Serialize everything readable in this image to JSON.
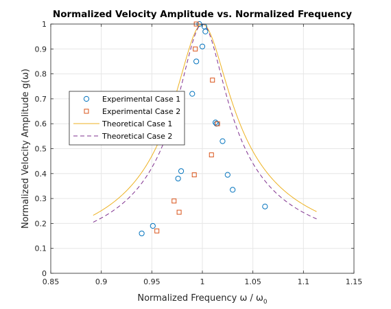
{
  "chart_data": {
    "type": "scatter",
    "title": "Normalized Velocity Amplitude vs. Normalized Frequency",
    "xlabel": {
      "main": "Normalized Frequency ω / ω",
      "sub": "0"
    },
    "ylabel": "Normalized Velocity Amplitude g(ω)",
    "xlim": [
      0.85,
      1.15
    ],
    "ylim": [
      0,
      1
    ],
    "xticks": [
      0.85,
      0.9,
      0.95,
      1,
      1.05,
      1.1,
      1.15
    ],
    "xtick_labels": [
      "0.85",
      "0.9",
      "0.95",
      "1",
      "1.05",
      "1.1",
      "1.15"
    ],
    "yticks": [
      0,
      0.1,
      0.2,
      0.3,
      0.4,
      0.5,
      0.6,
      0.7,
      0.8,
      0.9,
      1
    ],
    "ytick_labels": [
      "0",
      "0.1",
      "0.2",
      "0.3",
      "0.4",
      "0.5",
      "0.6",
      "0.7",
      "0.8",
      "0.9",
      "1"
    ],
    "grid": true,
    "legend_position": "left",
    "series": [
      {
        "name": "Experimental Case 1",
        "kind": "marker-circle",
        "color": "#0072BD",
        "points": [
          [
            0.94,
            0.16
          ],
          [
            0.951,
            0.19
          ],
          [
            0.976,
            0.38
          ],
          [
            0.979,
            0.41
          ],
          [
            0.99,
            0.72
          ],
          [
            0.994,
            0.85
          ],
          [
            0.997,
            1.0
          ],
          [
            1.0,
            0.91
          ],
          [
            1.002,
            0.99
          ],
          [
            1.003,
            0.97
          ],
          [
            1.013,
            0.605
          ],
          [
            1.014,
            0.6
          ],
          [
            1.02,
            0.53
          ],
          [
            1.025,
            0.395
          ],
          [
            1.03,
            0.335
          ],
          [
            1.062,
            0.268
          ]
        ]
      },
      {
        "name": "Experimental Case 2",
        "kind": "marker-square",
        "color": "#D95319",
        "points": [
          [
            0.955,
            0.17
          ],
          [
            0.972,
            0.29
          ],
          [
            0.977,
            0.245
          ],
          [
            0.992,
            0.395
          ],
          [
            0.993,
            0.9
          ],
          [
            0.994,
            1.0
          ],
          [
            1.009,
            0.475
          ],
          [
            1.01,
            0.775
          ],
          [
            1.015,
            0.6
          ]
        ]
      },
      {
        "name": "Theoretical Case 1",
        "kind": "line-solid",
        "color": "#EDB120",
        "curve": {
          "x_start": 0.892,
          "x_end": 1.113,
          "peak": 1,
          "zeta": 0.00274
        }
      },
      {
        "name": "Theoretical Case 2",
        "kind": "line-dashed",
        "color": "#7E2F8E",
        "curve": {
          "x_start": 0.892,
          "x_end": 1.113,
          "peak": 1,
          "zeta": 0.0024
        }
      }
    ]
  }
}
